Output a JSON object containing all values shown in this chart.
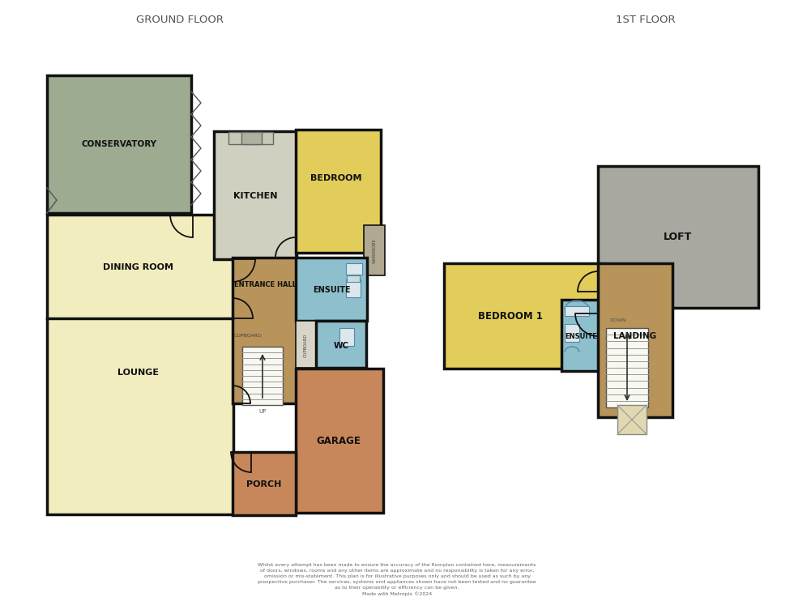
{
  "title_ground": "GROUND FLOOR",
  "title_first": "1ST FLOOR",
  "bg_color": "#ffffff",
  "colors": {
    "conservatory": "#9dab91",
    "light_yellow": "#f2edbe",
    "kitchen_gray": "#d0d0c0",
    "bedroom_yellow": "#e2cc5a",
    "ensuite_blue": "#8dbfcc",
    "garage_orange": "#c8875a",
    "entrance_brown": "#b8935a",
    "loft_gray": "#a8a8a0",
    "landing_brown": "#b8935a",
    "wardrobe_gray": "#b0a890",
    "cupboard_light": "#d8d5c8"
  },
  "disclaimer": "Whilst every attempt has been made to ensure the accuracy of the floorplan contained here, measurements\nof doors, windows, rooms and any other items are approximate and no responsibility is taken for any error,\nomission or mis-statement. This plan is for illustrative purposes only and should be used as such by any\nprospective purchaser. The services, systems and appliances shown have not been tested and no guarantee\nas to their operability or efficiency can be given.\nMade with Metropix ©2024"
}
